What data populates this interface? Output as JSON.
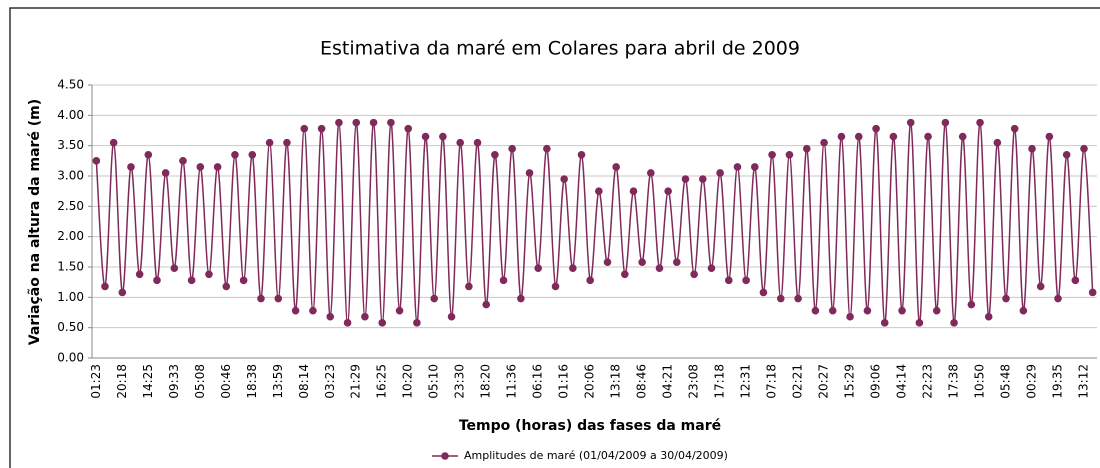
{
  "chart_data": {
    "type": "line",
    "title": "Estimativa da maré em Colares para abril de 2009",
    "ylabel": "Variação na altura da maré (m)",
    "xlabel": "Tempo (horas) das fases da maré",
    "categories": [
      "01:23",
      null,
      null,
      "20:18",
      null,
      null,
      "14:25",
      null,
      null,
      "09:33",
      null,
      null,
      "05:08",
      null,
      null,
      "00:46",
      null,
      null,
      "18:38",
      null,
      null,
      "13:59",
      null,
      null,
      "08:14",
      null,
      null,
      "03:23",
      null,
      null,
      "21:29",
      null,
      null,
      "16:25",
      null,
      null,
      "10:20",
      null,
      null,
      "05:10",
      null,
      null,
      "23:30",
      null,
      null,
      "18:20",
      null,
      null,
      "11:36",
      null,
      null,
      "06:16",
      null,
      null,
      "01:16",
      null,
      null,
      "20:06",
      null,
      null,
      "13:18",
      null,
      null,
      "08:46",
      null,
      null,
      "04:21",
      null,
      null,
      "23:08",
      null,
      null,
      "17:18",
      null,
      null,
      "12:31",
      null,
      null,
      "07:18",
      null,
      null,
      "02:21",
      null,
      null,
      "20:27",
      null,
      null,
      "15:29",
      null,
      null,
      "09:06",
      null,
      null,
      "04:14",
      null,
      null,
      "22:23",
      null,
      null,
      "17:38",
      null,
      null,
      "10:50",
      null,
      null,
      "05:48",
      null,
      null,
      "00:29",
      null,
      null,
      "19:35",
      null,
      null,
      "13:12",
      null
    ],
    "series": [
      {
        "name": "Amplitudes de maré (01/04/2009 a 30/04/2009)",
        "color": "#7f2a5a",
        "values": [
          3.25,
          1.18,
          3.55,
          1.08,
          3.15,
          1.38,
          3.35,
          1.28,
          3.05,
          1.48,
          3.25,
          1.28,
          3.15,
          1.38,
          3.15,
          1.18,
          3.35,
          1.28,
          3.35,
          0.98,
          3.55,
          0.98,
          3.55,
          0.78,
          3.78,
          0.78,
          3.78,
          0.68,
          3.88,
          0.58,
          3.88,
          0.68,
          3.88,
          0.58,
          3.88,
          0.78,
          3.78,
          0.58,
          3.65,
          0.98,
          3.65,
          0.68,
          3.55,
          1.18,
          3.55,
          0.88,
          3.35,
          1.28,
          3.45,
          0.98,
          3.05,
          1.48,
          3.45,
          1.18,
          2.95,
          1.48,
          3.35,
          1.28,
          2.75,
          1.58,
          3.15,
          1.38,
          2.75,
          1.58,
          3.05,
          1.48,
          2.75,
          1.58,
          2.95,
          1.38,
          2.95,
          1.48,
          3.05,
          1.28,
          3.15,
          1.28,
          3.15,
          1.08,
          3.35,
          0.98,
          3.35,
          0.98,
          3.45,
          0.78,
          3.55,
          0.78,
          3.65,
          0.68,
          3.65,
          0.78,
          3.78,
          0.58,
          3.65,
          0.78,
          3.88,
          0.58,
          3.65,
          0.78,
          3.88,
          0.58,
          3.65,
          0.88,
          3.88,
          0.68,
          3.55,
          0.98,
          3.78,
          0.78,
          3.45,
          1.18,
          3.65,
          0.98,
          3.35,
          1.28,
          3.45,
          1.08
        ]
      }
    ],
    "ylim": [
      0,
      4.5
    ],
    "yticks": [
      {
        "value": 0,
        "label": "0.00"
      },
      {
        "value": 0.5,
        "label": "0.50"
      },
      {
        "value": 1,
        "label": "1.00"
      },
      {
        "value": 1.5,
        "label": "1.50"
      },
      {
        "value": 2,
        "label": "2.00"
      },
      {
        "value": 2.5,
        "label": "2.50"
      },
      {
        "value": 3,
        "label": "3.00"
      },
      {
        "value": 3.5,
        "label": "3.50"
      },
      {
        "value": 4,
        "label": "4.00"
      },
      {
        "value": 4.5,
        "label": "4.50"
      }
    ],
    "grid": true,
    "legend": "bottom"
  }
}
